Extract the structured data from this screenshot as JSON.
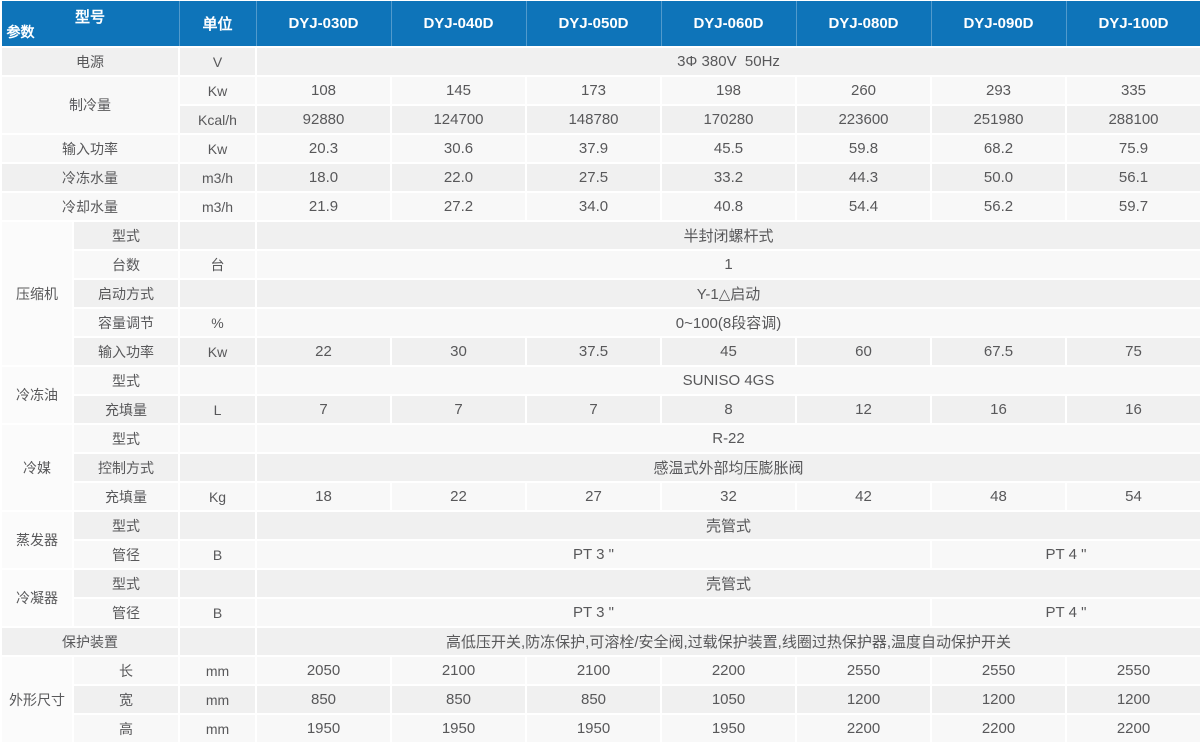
{
  "colors": {
    "header_bg": "#0e74b9",
    "header_text": "#ffffff",
    "row_dark": "#f0f0f0",
    "row_light": "#f8f8f8",
    "group_bg": "#fbfbfb",
    "body_text": "#58585a",
    "grid": "#ffffff"
  },
  "table": {
    "header": {
      "corner_top": "型号",
      "corner_bottom": "参数",
      "unit": "单位",
      "models": [
        "DYJ-030D",
        "DYJ-040D",
        "DYJ-050D",
        "DYJ-060D",
        "DYJ-080D",
        "DYJ-090D",
        "DYJ-100D"
      ]
    },
    "rows": [
      {
        "cells": [
          {
            "t": "电源",
            "k": "label",
            "c": 2
          },
          {
            "t": "V",
            "k": "unit"
          },
          {
            "t": "3Φ 380V  50Hz",
            "c": 7
          }
        ]
      },
      {
        "cells": [
          {
            "t": "制冷量",
            "k": "label",
            "c": 2,
            "r": 2
          },
          {
            "t": "Kw",
            "k": "unit"
          },
          {
            "t": "108"
          },
          {
            "t": "145"
          },
          {
            "t": "173"
          },
          {
            "t": "198"
          },
          {
            "t": "260"
          },
          {
            "t": "293"
          },
          {
            "t": "335"
          }
        ]
      },
      {
        "cells": [
          {
            "t": "Kcal/h",
            "k": "unit"
          },
          {
            "t": "92880"
          },
          {
            "t": "124700"
          },
          {
            "t": "148780"
          },
          {
            "t": "170280"
          },
          {
            "t": "223600"
          },
          {
            "t": "251980"
          },
          {
            "t": "288100"
          }
        ]
      },
      {
        "cells": [
          {
            "t": "输入功率",
            "k": "label",
            "c": 2
          },
          {
            "t": "Kw",
            "k": "unit"
          },
          {
            "t": "20.3"
          },
          {
            "t": "30.6"
          },
          {
            "t": "37.9"
          },
          {
            "t": "45.5"
          },
          {
            "t": "59.8"
          },
          {
            "t": "68.2"
          },
          {
            "t": "75.9"
          }
        ]
      },
      {
        "cells": [
          {
            "t": "冷冻水量",
            "k": "label",
            "c": 2
          },
          {
            "t": "m3/h",
            "k": "unit"
          },
          {
            "t": "18.0"
          },
          {
            "t": "22.0"
          },
          {
            "t": "27.5"
          },
          {
            "t": "33.2"
          },
          {
            "t": "44.3"
          },
          {
            "t": "50.0"
          },
          {
            "t": "56.1"
          }
        ]
      },
      {
        "cells": [
          {
            "t": "冷却水量",
            "k": "label",
            "c": 2
          },
          {
            "t": "m3/h",
            "k": "unit"
          },
          {
            "t": "21.9"
          },
          {
            "t": "27.2"
          },
          {
            "t": "34.0"
          },
          {
            "t": "40.8"
          },
          {
            "t": "54.4"
          },
          {
            "t": "56.2"
          },
          {
            "t": "59.7"
          }
        ]
      },
      {
        "cells": [
          {
            "t": "压缩机",
            "k": "group",
            "r": 5
          },
          {
            "t": "型式",
            "k": "sub"
          },
          {
            "t": "",
            "k": "unit"
          },
          {
            "t": "半封闭螺杆式",
            "c": 7
          }
        ]
      },
      {
        "cells": [
          {
            "t": "台数",
            "k": "sub"
          },
          {
            "t": "台",
            "k": "unit"
          },
          {
            "t": "1",
            "c": 7
          }
        ]
      },
      {
        "cells": [
          {
            "t": "启动方式",
            "k": "sub"
          },
          {
            "t": "",
            "k": "unit"
          },
          {
            "t": "Y-1△启动",
            "c": 7
          }
        ]
      },
      {
        "cells": [
          {
            "t": "容量调节",
            "k": "sub"
          },
          {
            "t": "%",
            "k": "unit"
          },
          {
            "t": "0~100(8段容调)",
            "c": 7
          }
        ]
      },
      {
        "cells": [
          {
            "t": "输入功率",
            "k": "sub"
          },
          {
            "t": "Kw",
            "k": "unit"
          },
          {
            "t": "22"
          },
          {
            "t": "30"
          },
          {
            "t": "37.5"
          },
          {
            "t": "45"
          },
          {
            "t": "60"
          },
          {
            "t": "67.5"
          },
          {
            "t": "75"
          }
        ]
      },
      {
        "cells": [
          {
            "t": "冷冻油",
            "k": "group",
            "r": 2
          },
          {
            "t": "型式",
            "k": "sub"
          },
          {
            "t": "",
            "k": "unit"
          },
          {
            "t": "SUNISO 4GS",
            "c": 7
          }
        ]
      },
      {
        "cells": [
          {
            "t": "充填量",
            "k": "sub"
          },
          {
            "t": "L",
            "k": "unit"
          },
          {
            "t": "7"
          },
          {
            "t": "7"
          },
          {
            "t": "7"
          },
          {
            "t": "8"
          },
          {
            "t": "12"
          },
          {
            "t": "16"
          },
          {
            "t": "16"
          }
        ]
      },
      {
        "cells": [
          {
            "t": "冷媒",
            "k": "group",
            "r": 3
          },
          {
            "t": "型式",
            "k": "sub"
          },
          {
            "t": "",
            "k": "unit"
          },
          {
            "t": "R-22",
            "c": 7
          }
        ]
      },
      {
        "cells": [
          {
            "t": "控制方式",
            "k": "sub"
          },
          {
            "t": "",
            "k": "unit"
          },
          {
            "t": "感温式外部均压膨胀阀",
            "c": 7
          }
        ]
      },
      {
        "cells": [
          {
            "t": "充填量",
            "k": "sub"
          },
          {
            "t": "Kg",
            "k": "unit"
          },
          {
            "t": "18"
          },
          {
            "t": "22"
          },
          {
            "t": "27"
          },
          {
            "t": "32"
          },
          {
            "t": "42"
          },
          {
            "t": "48"
          },
          {
            "t": "54"
          }
        ]
      },
      {
        "cells": [
          {
            "t": "蒸发器",
            "k": "group",
            "r": 2
          },
          {
            "t": "型式",
            "k": "sub"
          },
          {
            "t": "",
            "k": "unit"
          },
          {
            "t": "壳管式",
            "c": 7
          }
        ]
      },
      {
        "cells": [
          {
            "t": "管径",
            "k": "sub"
          },
          {
            "t": "B",
            "k": "unit"
          },
          {
            "t": "PT 3 \"",
            "c": 5
          },
          {
            "t": "PT 4 \"",
            "c": 2
          }
        ]
      },
      {
        "cells": [
          {
            "t": "冷凝器",
            "k": "group",
            "r": 2
          },
          {
            "t": "型式",
            "k": "sub"
          },
          {
            "t": "",
            "k": "unit"
          },
          {
            "t": "壳管式",
            "c": 7
          }
        ]
      },
      {
        "cells": [
          {
            "t": "管径",
            "k": "sub"
          },
          {
            "t": "B",
            "k": "unit"
          },
          {
            "t": "PT 3 \"",
            "c": 5
          },
          {
            "t": "PT 4 \"",
            "c": 2
          }
        ]
      },
      {
        "cells": [
          {
            "t": "保护装置",
            "k": "label",
            "c": 2
          },
          {
            "t": "",
            "k": "unit"
          },
          {
            "t": "高低压开关,防冻保护,可溶栓/安全阀,过载保护装置,线圈过热保护器,温度自动保护开关",
            "c": 7
          }
        ]
      },
      {
        "cells": [
          {
            "t": "外形尺寸",
            "k": "group",
            "r": 3
          },
          {
            "t": "长",
            "k": "sub"
          },
          {
            "t": "mm",
            "k": "unit"
          },
          {
            "t": "2050"
          },
          {
            "t": "2100"
          },
          {
            "t": "2100"
          },
          {
            "t": "2200"
          },
          {
            "t": "2550"
          },
          {
            "t": "2550"
          },
          {
            "t": "2550"
          }
        ]
      },
      {
        "cells": [
          {
            "t": "宽",
            "k": "sub"
          },
          {
            "t": "mm",
            "k": "unit"
          },
          {
            "t": "850"
          },
          {
            "t": "850"
          },
          {
            "t": "850"
          },
          {
            "t": "1050"
          },
          {
            "t": "1200"
          },
          {
            "t": "1200"
          },
          {
            "t": "1200"
          }
        ]
      },
      {
        "cells": [
          {
            "t": "高",
            "k": "sub"
          },
          {
            "t": "mm",
            "k": "unit"
          },
          {
            "t": "1950"
          },
          {
            "t": "1950"
          },
          {
            "t": "1950"
          },
          {
            "t": "1950"
          },
          {
            "t": "2200"
          },
          {
            "t": "2200"
          },
          {
            "t": "2200"
          }
        ]
      }
    ]
  }
}
